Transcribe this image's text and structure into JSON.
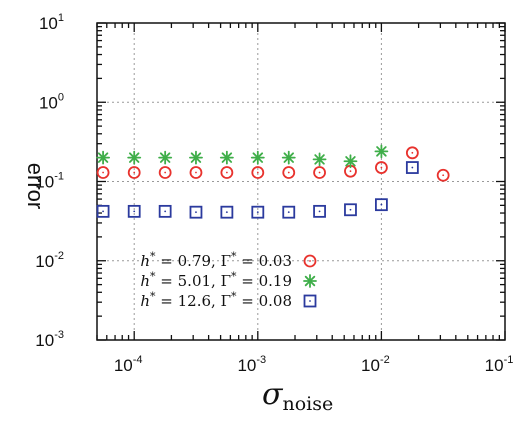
{
  "chart_data": {
    "type": "scatter",
    "xlabel": "σ",
    "xlabel_sub": "noise",
    "ylabel": "error",
    "x_scale": "log",
    "y_scale": "log",
    "xlim": [
      5e-05,
      0.1
    ],
    "ylim": [
      0.001,
      10
    ],
    "grid": true,
    "legend_position": "bottom-left",
    "x_ticks": [
      {
        "value": 0.0001,
        "base": "10",
        "exp": "-4"
      },
      {
        "value": 0.001,
        "base": "10",
        "exp": "-3"
      },
      {
        "value": 0.01,
        "base": "10",
        "exp": "-2"
      },
      {
        "value": 0.1,
        "base": "10",
        "exp": "-1"
      }
    ],
    "y_ticks": [
      {
        "value": 10,
        "base": "10",
        "exp": "1"
      },
      {
        "value": 1,
        "base": "10",
        "exp": "0"
      },
      {
        "value": 0.1,
        "base": "10",
        "exp": "-1"
      },
      {
        "value": 0.01,
        "base": "10",
        "exp": "-2"
      },
      {
        "value": 0.001,
        "base": "10",
        "exp": "-3"
      }
    ],
    "series": [
      {
        "name": "h* = 0.79, Γ* = 0.03",
        "marker": "circle",
        "color": "#e8322d",
        "x": [
          5.6e-05,
          0.0001,
          0.000178,
          0.000316,
          0.000562,
          0.001,
          0.00178,
          0.00316,
          0.00562,
          0.01,
          0.0178,
          0.0316
        ],
        "y": [
          0.13,
          0.13,
          0.13,
          0.13,
          0.13,
          0.13,
          0.13,
          0.13,
          0.135,
          0.15,
          0.23,
          0.12
        ]
      },
      {
        "name": "h* = 5.01, Γ* = 0.19",
        "marker": "asterisk",
        "color": "#3fae49",
        "x": [
          5.6e-05,
          0.0001,
          0.000178,
          0.000316,
          0.000562,
          0.001,
          0.00178,
          0.00316,
          0.00562,
          0.01
        ],
        "y": [
          0.2,
          0.2,
          0.2,
          0.2,
          0.2,
          0.2,
          0.2,
          0.19,
          0.18,
          0.24
        ]
      },
      {
        "name": "h* = 12.6, Γ* = 0.08",
        "marker": "square",
        "color": "#2b3a9e",
        "x": [
          5.6e-05,
          0.0001,
          0.000178,
          0.000316,
          0.000562,
          0.001,
          0.00178,
          0.00316,
          0.00562,
          0.01,
          0.0178
        ],
        "y": [
          0.042,
          0.042,
          0.042,
          0.041,
          0.041,
          0.041,
          0.041,
          0.042,
          0.044,
          0.051,
          0.15
        ]
      }
    ],
    "legend": [
      {
        "series": 0,
        "h": "0.79",
        "g": "0.03"
      },
      {
        "series": 1,
        "h": "5.01",
        "g": "0.19"
      },
      {
        "series": 2,
        "h": "12.6",
        "g": "0.08"
      }
    ]
  }
}
